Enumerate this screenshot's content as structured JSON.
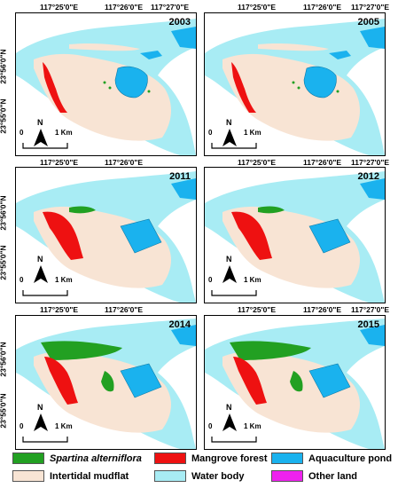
{
  "coords": {
    "lon": [
      "117°25'0\"E",
      "117°26'0\"E",
      "117°27'0\"E"
    ],
    "lat": [
      "23°56'0\"N",
      "23°55'0\"N"
    ]
  },
  "panels": [
    {
      "year": "2003"
    },
    {
      "year": "2005"
    },
    {
      "year": "2011"
    },
    {
      "year": "2012"
    },
    {
      "year": "2014"
    },
    {
      "year": "2015"
    }
  ],
  "north_label": "N",
  "scale": {
    "zero": "0",
    "one": "1 Km"
  },
  "legend": [
    {
      "label": "Spartina alterniflora",
      "color": "#22a022",
      "italic": true
    },
    {
      "label": "Mangrove forest",
      "color": "#ee1111",
      "italic": false
    },
    {
      "label": "Aquaculture pond",
      "color": "#1ab2ee",
      "italic": false
    },
    {
      "label": "Intertidal mudflat",
      "color": "#f8e4d4",
      "italic": false
    },
    {
      "label": "Water body",
      "color": "#a8ecf4",
      "italic": false
    },
    {
      "label": "Other land",
      "color": "#ee22ee",
      "italic": false
    }
  ]
}
